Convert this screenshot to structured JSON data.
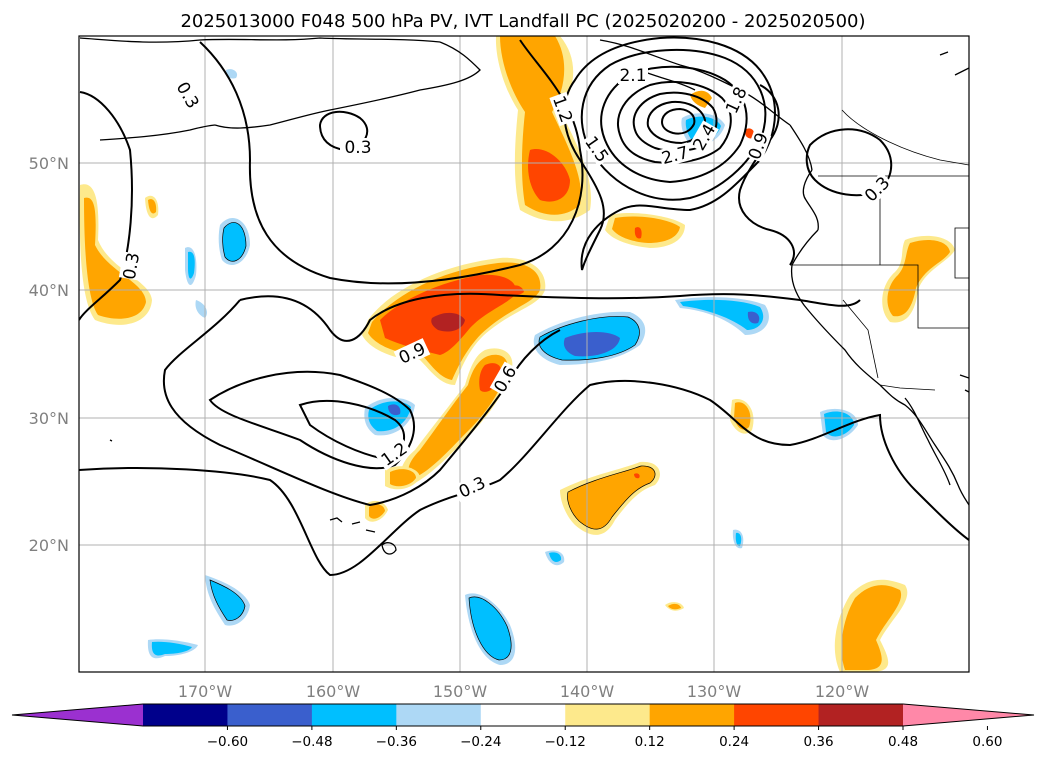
{
  "figure": {
    "title": "2025013000 F048 500 hPa PV, IVT Landfall PC (2025020200 - 2025020500)"
  },
  "axes": {
    "lat_labels": [
      "50°N",
      "40°N",
      "30°N",
      "20°N"
    ],
    "lon_labels": [
      "170°W",
      "160°W",
      "150°W",
      "140°W",
      "130°W",
      "120°W"
    ]
  },
  "contour_labels": [
    "0.3",
    "0.3",
    "0.3",
    "0.3",
    "0.3",
    "0.6",
    "0.9",
    "0.9",
    "1.2",
    "1.2",
    "1.5",
    "1.8",
    "2.1",
    "2.4",
    "2.7"
  ],
  "colorbar": {
    "tick_labels": [
      "−0.60",
      "−0.48",
      "−0.36",
      "−0.24",
      "−0.12",
      "0.12",
      "0.24",
      "0.36",
      "0.48",
      "0.60"
    ],
    "colors": [
      "#9b30d0",
      "#00008b",
      "#3a5fcd",
      "#00bfff",
      "#add8f5",
      "#ffffff",
      "#fde98c",
      "#ffa500",
      "#ff4500",
      "#b22222",
      "#ff88a8"
    ]
  }
}
